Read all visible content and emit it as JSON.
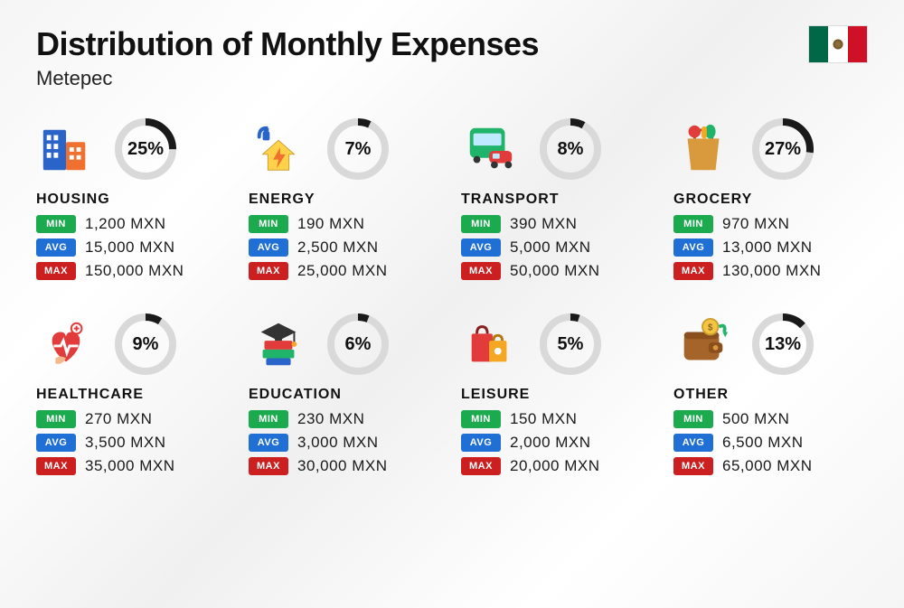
{
  "title": "Distribution of Monthly Expenses",
  "subtitle": "Metepec",
  "currency": "MXN",
  "labels": {
    "min": "MIN",
    "avg": "AVG",
    "max": "MAX"
  },
  "colors": {
    "min_pill": "#1caa4f",
    "avg_pill": "#1f6fd4",
    "max_pill": "#cc1f1f",
    "donut_fg": "#1a1a1a",
    "donut_bg": "#d9d9d9",
    "title_text": "#111111",
    "value_text": "#1a1a1a",
    "page_bg_light": "#ffffff",
    "page_bg_shade": "#f0f0f0"
  },
  "flag": {
    "green": "#006847",
    "white": "#ffffff",
    "red": "#ce1126"
  },
  "donut": {
    "radius": 30,
    "stroke_width": 8,
    "circumference": 188.5
  },
  "typography": {
    "title_fontsize": 36,
    "title_weight": 800,
    "subtitle_fontsize": 22,
    "subtitle_weight": 400,
    "category_fontsize": 16,
    "category_weight": 800,
    "percent_fontsize": 20,
    "percent_weight": 800,
    "value_fontsize": 17,
    "value_weight": 500,
    "pill_fontsize": 11,
    "pill_weight": 700
  },
  "categories": [
    {
      "key": "housing",
      "name": "HOUSING",
      "percent": 25,
      "min": "1,200",
      "avg": "15,000",
      "max": "150,000",
      "icon": "buildings-icon"
    },
    {
      "key": "energy",
      "name": "ENERGY",
      "percent": 7,
      "min": "190",
      "avg": "2,500",
      "max": "25,000",
      "icon": "energy-house-icon"
    },
    {
      "key": "transport",
      "name": "TRANSPORT",
      "percent": 8,
      "min": "390",
      "avg": "5,000",
      "max": "50,000",
      "icon": "bus-car-icon"
    },
    {
      "key": "grocery",
      "name": "GROCERY",
      "percent": 27,
      "min": "970",
      "avg": "13,000",
      "max": "130,000",
      "icon": "grocery-bag-icon"
    },
    {
      "key": "healthcare",
      "name": "HEALTHCARE",
      "percent": 9,
      "min": "270",
      "avg": "3,500",
      "max": "35,000",
      "icon": "heart-care-icon"
    },
    {
      "key": "education",
      "name": "EDUCATION",
      "percent": 6,
      "min": "230",
      "avg": "3,000",
      "max": "30,000",
      "icon": "books-cap-icon"
    },
    {
      "key": "leisure",
      "name": "LEISURE",
      "percent": 5,
      "min": "150",
      "avg": "2,000",
      "max": "20,000",
      "icon": "shopping-bags-icon"
    },
    {
      "key": "other",
      "name": "OTHER",
      "percent": 13,
      "min": "500",
      "avg": "6,500",
      "max": "65,000",
      "icon": "wallet-icon"
    }
  ]
}
